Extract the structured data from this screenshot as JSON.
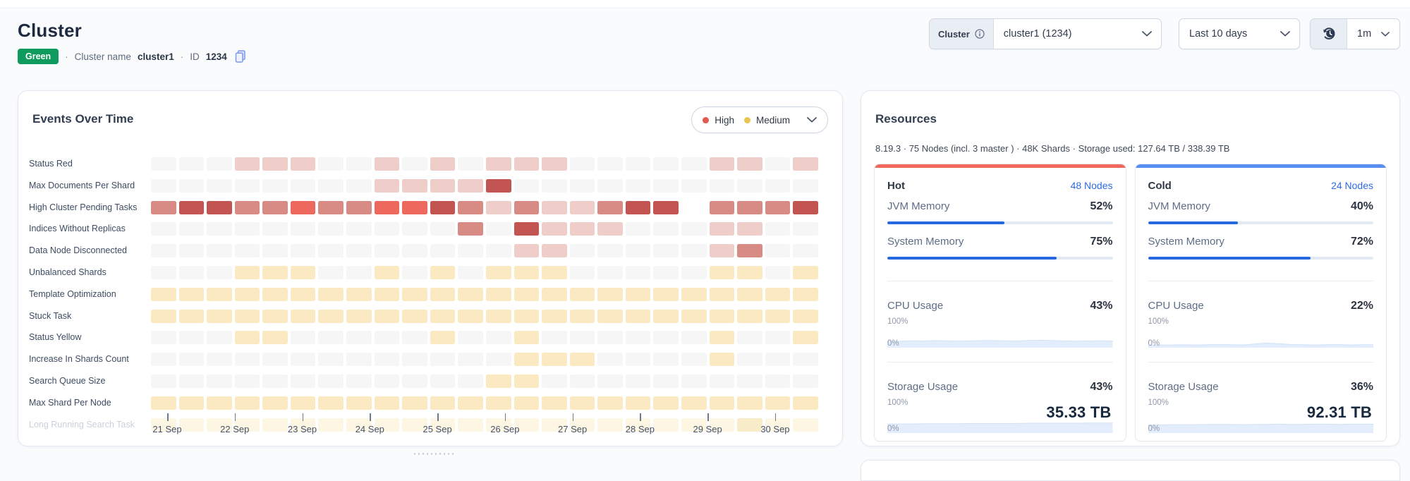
{
  "header": {
    "title": "Cluster",
    "status_badge": "Green",
    "sep": "·",
    "cluster_name_label": "Cluster name",
    "cluster_name": "cluster1",
    "id_label": "ID",
    "id_value": "1234"
  },
  "controls": {
    "cluster_label": "Cluster",
    "cluster_value": "cluster1 (1234)",
    "time_range": "Last 10 days",
    "refresh_interval": "1m"
  },
  "events_panel": {
    "title": "Events Over Time",
    "legend": [
      {
        "label": "High",
        "color": "#e25a4e"
      },
      {
        "label": "Medium",
        "color": "#e9c44f"
      }
    ],
    "chart_data": {
      "type": "heatmap",
      "title": "Events Over Time",
      "row_labels": [
        "Status Red",
        "Max Documents Per Shard",
        "High Cluster Pending Tasks",
        "Indices Without Replicas",
        "Data Node Disconnected",
        "Unbalanced Shards",
        "Template Optimization",
        "Stuck Task",
        "Status Yellow",
        "Increase In Shards Count",
        "Search Queue Size",
        "Max Shard Per Node",
        "Long Running Search Task"
      ],
      "x_tick_labels": [
        "21 Sep",
        "22 Sep",
        "23 Sep",
        "24 Sep",
        "25 Sep",
        "26 Sep",
        "27 Sep",
        "28 Sep",
        "29 Sep",
        "30 Sep"
      ],
      "columns": 24,
      "severity_colors": {
        "0": "#f6f6f7",
        "W": "#ffffff",
        "L": "#efcdc9",
        "M": "#d88a84",
        "B": "#ed685d",
        "D": "#c25551",
        "Y": "#fbeac1",
        "F": "#fdf6e3",
        "g": "#f8ecc9"
      },
      "matrix": [
        "000LLL00L0L0LLL00000LL0L",
        "00000000LLLLD00000000000",
        "MDDMMBMMBBDMLMLLMDDWMMMD",
        "00000000000M0DLLL000LL00",
        "0000000000000LL00000LM00",
        "000YYY00Y0Y0YYY00000YY0Y",
        "YYYYYYYYYYYYYYYYYYYYYYYY",
        "YYYYYYYYYYYYYYYYYYYYYYYY",
        "000YY00000Y00Y000000Y00Y",
        "0000000000000YYY0000Y000",
        "000000000000YY0000000000",
        "YYYYYYYYYYYYYYYYYYYYYYYY",
        "FFFFFFFFFFFFFFFFFFFFFgFF"
      ],
      "legend": [
        "High",
        "Medium"
      ]
    }
  },
  "resources_panel": {
    "title": "Resources",
    "subtitle": "8.19.3 · 75 Nodes (incl. 3 master ) · 48K Shards · Storage used: 127.64 TB / 338.39 TB",
    "labels": {
      "jvm": "JVM Memory",
      "system": "System Memory",
      "cpu": "CPU Usage",
      "storage": "Storage Usage",
      "hundred": "100%",
      "zero": "0%"
    },
    "tiers": [
      {
        "name": "Hot",
        "accent": "#f4695e",
        "nodes": "48 Nodes",
        "jvm": "52%",
        "system": "75%",
        "cpu": "43%",
        "storage": "43%",
        "storage_value": "35.33 TB",
        "cpu_spark": [
          32,
          33,
          35,
          34,
          36,
          35,
          33,
          34,
          36,
          36,
          35,
          34,
          37,
          38,
          36,
          34,
          33,
          34,
          35,
          34
        ],
        "storage_spark": [
          38,
          38,
          38,
          39,
          39,
          39,
          39,
          40,
          40,
          40,
          40,
          40,
          41,
          41,
          41,
          41,
          41,
          42,
          42,
          42
        ]
      },
      {
        "name": "Cold",
        "accent": "#5a8ff2",
        "nodes": "24 Nodes",
        "jvm": "40%",
        "system": "72%",
        "cpu": "22%",
        "storage": "36%",
        "storage_value": "92.31 TB",
        "cpu_spark": [
          13,
          14,
          14,
          15,
          14,
          15,
          16,
          15,
          14,
          19,
          24,
          20,
          16,
          15,
          14,
          15,
          16,
          14,
          15,
          15
        ],
        "storage_spark": [
          34,
          34,
          35,
          35,
          35,
          36,
          36,
          36,
          35,
          36,
          36,
          37,
          36,
          36,
          37,
          37,
          36,
          37,
          37,
          37
        ]
      }
    ]
  }
}
